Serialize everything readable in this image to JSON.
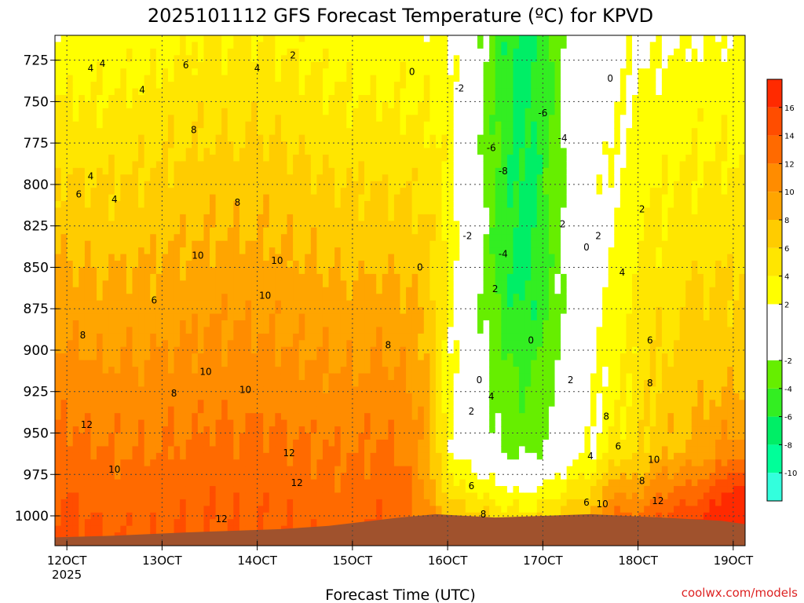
{
  "chart_data": {
    "type": "heatmap",
    "title": "2025101112 GFS Forecast Temperature (ºC) for KPVD",
    "xlabel": "Forecast Time (UTC)",
    "ylabel": "",
    "x_ticks": [
      {
        "hour": 0,
        "label": "12OCT"
      },
      {
        "hour": 24,
        "label": "13OCT"
      },
      {
        "hour": 48,
        "label": "14OCT"
      },
      {
        "hour": 72,
        "label": "15OCT"
      },
      {
        "hour": 96,
        "label": "16OCT"
      },
      {
        "hour": 120,
        "label": "17OCT"
      },
      {
        "hour": 144,
        "label": "18OCT"
      },
      {
        "hour": 168,
        "label": "19OCT"
      }
    ],
    "x_year_label": "2025",
    "xlim": [
      -3,
      171
    ],
    "y_ticks": [
      725,
      750,
      775,
      800,
      825,
      850,
      875,
      900,
      925,
      950,
      975,
      1000
    ],
    "ylim": [
      1018,
      710
    ],
    "grid": true,
    "colorbar": {
      "boundaries": [
        -12,
        -10,
        -8,
        -6,
        -4,
        -2,
        2,
        4,
        6,
        8,
        10,
        12,
        14,
        16,
        18
      ],
      "labels": [
        "-10",
        "-8",
        "-6",
        "-4",
        "-2",
        "2",
        "4",
        "6",
        "8",
        "10",
        "12",
        "14",
        "16"
      ],
      "label_values": [
        -10,
        -8,
        -6,
        -4,
        -2,
        2,
        4,
        6,
        8,
        10,
        12,
        14,
        16
      ],
      "colors": [
        "#33ffdd",
        "#00ff99",
        "#00ee66",
        "#33ee22",
        "#66ee00",
        "#ffffff",
        "#ffff00",
        "#ffe600",
        "#ffcc00",
        "#ffa500",
        "#ff8c00",
        "#ff6a00",
        "#ff4d00",
        "#ff2a00"
      ]
    },
    "terrain_color": "#a0522d",
    "surface_pressure": [
      {
        "hour": -3,
        "p": 1013
      },
      {
        "hour": 12,
        "p": 1012
      },
      {
        "hour": 30,
        "p": 1010
      },
      {
        "hour": 54,
        "p": 1008
      },
      {
        "hour": 66,
        "p": 1006
      },
      {
        "hour": 84,
        "p": 1001
      },
      {
        "hour": 93,
        "p": 999
      },
      {
        "hour": 108,
        "p": 1001
      },
      {
        "hour": 132,
        "p": 999
      },
      {
        "hour": 150,
        "p": 1001
      },
      {
        "hour": 165,
        "p": 1003
      },
      {
        "hour": 171,
        "p": 1005
      }
    ],
    "contour_labels": [
      {
        "hour": 6,
        "p": 730,
        "t": "4"
      },
      {
        "hour": 9,
        "p": 727,
        "t": "4"
      },
      {
        "hour": 30,
        "p": 728,
        "t": "6"
      },
      {
        "hour": 48,
        "p": 730,
        "t": "4"
      },
      {
        "hour": 57,
        "p": 722,
        "t": "2"
      },
      {
        "hour": 19,
        "p": 743,
        "t": "4"
      },
      {
        "hour": 87,
        "p": 732,
        "t": "0"
      },
      {
        "hour": 99,
        "p": 742,
        "t": "-2"
      },
      {
        "hour": 120,
        "p": 757,
        "t": "-6"
      },
      {
        "hour": 125,
        "p": 772,
        "t": "-4"
      },
      {
        "hour": 137,
        "p": 736,
        "t": "0"
      },
      {
        "hour": 32,
        "p": 767,
        "t": "8"
      },
      {
        "hour": 6,
        "p": 795,
        "t": "4"
      },
      {
        "hour": 12,
        "p": 809,
        "t": "4"
      },
      {
        "hour": 107,
        "p": 778,
        "t": "-6"
      },
      {
        "hour": 110,
        "p": 792,
        "t": "-8"
      },
      {
        "hour": 3,
        "p": 806,
        "t": "6"
      },
      {
        "hour": 43,
        "p": 811,
        "t": "8"
      },
      {
        "hour": 145,
        "p": 815,
        "t": "2"
      },
      {
        "hour": 101,
        "p": 831,
        "t": "-2"
      },
      {
        "hour": 125,
        "p": 824,
        "t": "2"
      },
      {
        "hour": 131,
        "p": 838,
        "t": "0"
      },
      {
        "hour": 134,
        "p": 831,
        "t": "2"
      },
      {
        "hour": 110,
        "p": 842,
        "t": "-4"
      },
      {
        "hour": 33,
        "p": 843,
        "t": "10"
      },
      {
        "hour": 53,
        "p": 846,
        "t": "10"
      },
      {
        "hour": 89,
        "p": 850,
        "t": "0"
      },
      {
        "hour": 140,
        "p": 853,
        "t": "4"
      },
      {
        "hour": 22,
        "p": 870,
        "t": "6"
      },
      {
        "hour": 50,
        "p": 867,
        "t": "10"
      },
      {
        "hour": 108,
        "p": 863,
        "t": "2"
      },
      {
        "hour": 4,
        "p": 891,
        "t": "8"
      },
      {
        "hour": 117,
        "p": 894,
        "t": "0"
      },
      {
        "hour": 147,
        "p": 894,
        "t": "6"
      },
      {
        "hour": 81,
        "p": 897,
        "t": "8"
      },
      {
        "hour": 35,
        "p": 913,
        "t": "10"
      },
      {
        "hour": 45,
        "p": 924,
        "t": "10"
      },
      {
        "hour": 104,
        "p": 918,
        "t": "0"
      },
      {
        "hour": 127,
        "p": 918,
        "t": "2"
      },
      {
        "hour": 147,
        "p": 920,
        "t": "8"
      },
      {
        "hour": 27,
        "p": 926,
        "t": "8"
      },
      {
        "hour": 107,
        "p": 928,
        "t": "4"
      },
      {
        "hour": 102,
        "p": 937,
        "t": "2"
      },
      {
        "hour": 136,
        "p": 940,
        "t": "8"
      },
      {
        "hour": 5,
        "p": 945,
        "t": "12"
      },
      {
        "hour": 56,
        "p": 962,
        "t": "12"
      },
      {
        "hour": 139,
        "p": 958,
        "t": "6"
      },
      {
        "hour": 132,
        "p": 964,
        "t": "4"
      },
      {
        "hour": 148,
        "p": 966,
        "t": "10"
      },
      {
        "hour": 12,
        "p": 972,
        "t": "10"
      },
      {
        "hour": 145,
        "p": 979,
        "t": "8"
      },
      {
        "hour": 58,
        "p": 980,
        "t": "12"
      },
      {
        "hour": 102,
        "p": 982,
        "t": "6"
      },
      {
        "hour": 149,
        "p": 991,
        "t": "12"
      },
      {
        "hour": 131,
        "p": 992,
        "t": "6"
      },
      {
        "hour": 135,
        "p": 993,
        "t": "10"
      },
      {
        "hour": 105,
        "p": 999,
        "t": "8"
      },
      {
        "hour": 39,
        "p": 1002,
        "t": "12"
      }
    ]
  },
  "credit": "coolwx.com/models"
}
